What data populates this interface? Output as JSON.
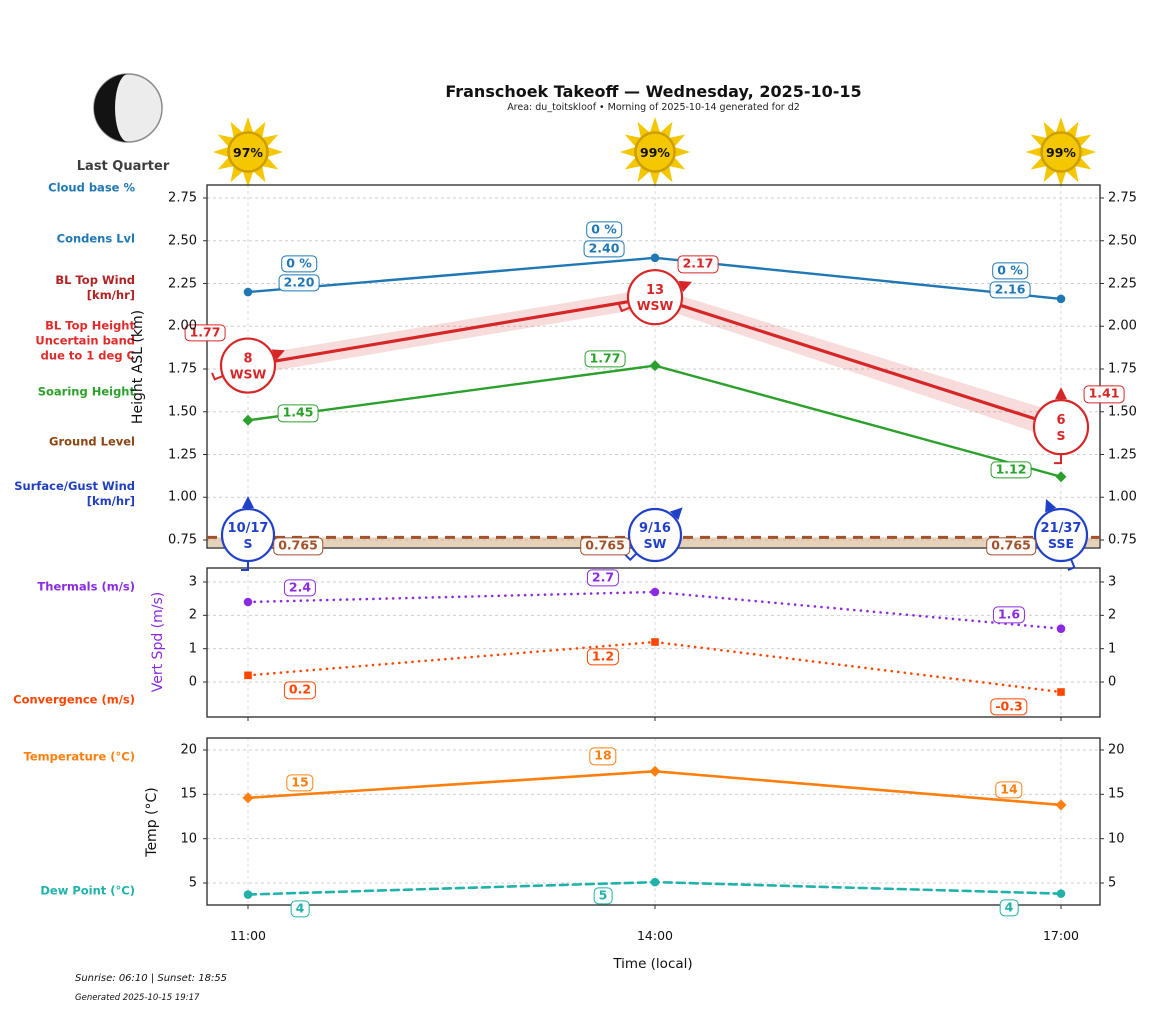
{
  "header": {
    "title": "Franschoek Takeoff — Wednesday, 2025-10-15",
    "subtitle": "Area: du_toitskloof • Morning of 2025-10-14 generated for d2"
  },
  "moon": {
    "phase_label": "Last Quarter"
  },
  "suns": [
    {
      "pct": "97%"
    },
    {
      "pct": "99%"
    },
    {
      "pct": "99%"
    }
  ],
  "left_labels": [
    {
      "text": "Cloud base %",
      "color": "#1f77b4"
    },
    {
      "text": "Condens Lvl",
      "color": "#1f77b4"
    },
    {
      "text": "BL Top Wind\n[km/hr]",
      "color": "#b22222"
    },
    {
      "text": "BL Top Height\nUncertain band\ndue to 1 deg C",
      "color": "#e02b2b"
    },
    {
      "text": "Soaring Height",
      "color": "#2ca02c"
    },
    {
      "text": "Ground Level",
      "color": "#8B4513"
    },
    {
      "text": "Surface/Gust Wind\n[km/hr]",
      "color": "#2040c0"
    },
    {
      "text": "Thermals (m/s)",
      "color": "#8a2be2"
    },
    {
      "text": "Convergence (m/s)",
      "color": "#ff4500"
    },
    {
      "text": "Temperature (°C)",
      "color": "#ff7f0e"
    },
    {
      "text": "Dew Point (°C)",
      "color": "#20b2aa"
    }
  ],
  "axes": {
    "x_ticks": [
      "11:00",
      "14:00",
      "17:00"
    ],
    "x_label": "Time (local)"
  },
  "chart_data": [
    {
      "type": "line",
      "title": "Heights panel",
      "ylabel": "Height ASL (km)",
      "yticks": [
        0.75,
        1.0,
        1.25,
        1.5,
        1.75,
        2.0,
        2.25,
        2.5,
        2.75
      ],
      "ylim": [
        0.7,
        2.83
      ],
      "x": [
        "11:00",
        "14:00",
        "17:00"
      ],
      "grid": "dashed",
      "legend_position": "left-margin",
      "series": [
        {
          "name": "Condens Lvl",
          "color": "#1f77b4",
          "style": "solid",
          "marker": "circle",
          "values": [
            2.2,
            2.4,
            2.16
          ],
          "value_labels": [
            "2.20",
            "2.40",
            "2.16"
          ],
          "cloud_base_labels": [
            "0 %",
            "0 %",
            "0 %"
          ]
        },
        {
          "name": "BL Top Height",
          "color": "#d62728",
          "style": "solid",
          "marker": "none",
          "values": [
            1.77,
            2.17,
            1.41
          ],
          "value_labels": [
            "1.77",
            "2.17",
            "1.41"
          ],
          "uncertainty_half_band": [
            0.055,
            0.055,
            0.08
          ]
        },
        {
          "name": "Soaring Height",
          "color": "#2ca02c",
          "style": "solid",
          "marker": "diamond",
          "values": [
            1.45,
            1.77,
            1.12
          ],
          "value_labels": [
            "1.45",
            "1.77",
            "1.12"
          ]
        }
      ],
      "ground_level": {
        "value": 0.765,
        "labels": [
          "0.765",
          "0.765",
          "0.765"
        ],
        "line_color": "#a0522d",
        "fill_color": "rgba(205,164,120,0.5)",
        "label_color": "#a0522d"
      },
      "bl_top_wind": {
        "color": "#d62728",
        "points": [
          {
            "speed": "8",
            "dir": "WSW"
          },
          {
            "speed": "13",
            "dir": "WSW"
          },
          {
            "speed": "6",
            "dir": "S"
          }
        ]
      },
      "surface_wind": {
        "color": "#2040c8",
        "points": [
          {
            "speed": "10/17",
            "dir": "S"
          },
          {
            "speed": "9/16",
            "dir": "SW"
          },
          {
            "speed": "21/37",
            "dir": "SSE"
          }
        ]
      }
    },
    {
      "type": "line",
      "title": "Vertical speed panel",
      "ylabel": "Vert Spd (m/s)",
      "ylabel_color": "#8a2be2",
      "yticks": [
        0,
        1,
        2,
        3
      ],
      "ylim": [
        -1.05,
        3.4
      ],
      "x": [
        "11:00",
        "14:00",
        "17:00"
      ],
      "grid": "dashed",
      "series": [
        {
          "name": "Thermals (m/s)",
          "color": "#8a2be2",
          "style": "dotted",
          "marker": "circle",
          "values": [
            2.4,
            2.7,
            1.6
          ],
          "value_labels": [
            "2.4",
            "2.7",
            "1.6"
          ],
          "label_dy": -14
        },
        {
          "name": "Convergence (m/s)",
          "color": "#ff4500",
          "style": "dotted",
          "marker": "square",
          "values": [
            0.2,
            1.2,
            -0.3
          ],
          "value_labels": [
            "0.2",
            "1.2",
            "-0.3"
          ],
          "label_dy": 15
        }
      ]
    },
    {
      "type": "line",
      "title": "Temperature panel",
      "ylabel": "Temp (°C)",
      "yticks": [
        5,
        10,
        15,
        20
      ],
      "ylim": [
        2.5,
        21.3
      ],
      "x": [
        "11:00",
        "14:00",
        "17:00"
      ],
      "grid": "dashed",
      "series": [
        {
          "name": "Temperature (°C)",
          "color": "#ff7f0e",
          "style": "solid",
          "marker": "diamond",
          "values": [
            14.6,
            17.6,
            13.8
          ],
          "value_labels": [
            "15",
            "18",
            "14"
          ],
          "label_dy": -15
        },
        {
          "name": "Dew Point (°C)",
          "color": "#20b2aa",
          "style": "dashed",
          "marker": "circle",
          "values": [
            3.7,
            5.1,
            3.8
          ],
          "value_labels": [
            "4",
            "5",
            "4"
          ],
          "label_dy": 14
        }
      ]
    }
  ],
  "footer": {
    "sun_times": "Sunrise: 06:10 | Sunset: 18:55",
    "generated": "Generated 2025-10-15 19:17"
  }
}
